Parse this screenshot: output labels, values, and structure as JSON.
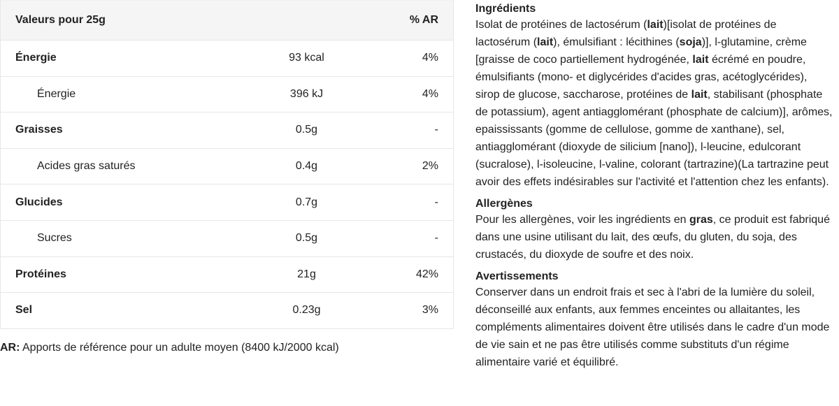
{
  "table": {
    "header": {
      "label": "Valeurs pour 25g",
      "value": "",
      "ar": "% AR"
    },
    "rows": [
      {
        "label": "Énergie",
        "value": "93 kcal",
        "ar": "4%",
        "level": "main"
      },
      {
        "label": "Énergie",
        "value": "396 kJ",
        "ar": "4%",
        "level": "sub"
      },
      {
        "label": "Graisses",
        "value": "0.5g",
        "ar": "-",
        "level": "main"
      },
      {
        "label": "Acides gras saturés",
        "value": "0.4g",
        "ar": "2%",
        "level": "sub"
      },
      {
        "label": "Glucides",
        "value": "0.7g",
        "ar": "-",
        "level": "main"
      },
      {
        "label": "Sucres",
        "value": "0.5g",
        "ar": "-",
        "level": "sub"
      },
      {
        "label": "Protéines",
        "value": "21g",
        "ar": "42%",
        "level": "main"
      },
      {
        "label": "Sel",
        "value": "0.23g",
        "ar": "3%",
        "level": "main"
      }
    ]
  },
  "footnote": {
    "abbr": "AR:",
    "text": " Apports de référence pour un adulte moyen (8400 kJ/2000 kcal)"
  },
  "sections": [
    {
      "title": "Ingrédients",
      "segments": [
        {
          "t": "Isolat de protéines de lactosérum ("
        },
        {
          "t": "lait",
          "b": true
        },
        {
          "t": ")[isolat de protéines de lactosérum ("
        },
        {
          "t": "lait",
          "b": true
        },
        {
          "t": "), émulsifiant : lécithines ("
        },
        {
          "t": "soja",
          "b": true
        },
        {
          "t": ")], l-glutamine, crème [graisse de coco partiellement hydrogénée, "
        },
        {
          "t": "lait",
          "b": true
        },
        {
          "t": " écrémé en poudre, émulsifiants (mono- et diglycérides d'acides gras, acétoglycérides), sirop de glucose, saccharose, protéines de "
        },
        {
          "t": "lait",
          "b": true
        },
        {
          "t": ", stabilisant (phosphate de potassium), agent antiagglomérant (phosphate de calcium)], arômes, epaississants (gomme de cellulose, gomme de xanthane), sel, antiagglomérant (dioxyde de silicium [nano]), l-leucine, edulcorant (sucralose), l-isoleucine, l-valine, colorant (tartrazine)(La tartrazine peut avoir des effets indésirables sur l'activité et l'attention chez les enfants)."
        }
      ]
    },
    {
      "title": "Allergènes",
      "segments": [
        {
          "t": "Pour les allergènes, voir les ingrédients en "
        },
        {
          "t": "gras",
          "b": true
        },
        {
          "t": ", ce produit est fabriqué dans une usine utilisant du lait, des œufs, du gluten, du soja, des crustacés, du dioxyde de soufre et des noix."
        }
      ]
    },
    {
      "title": "Avertissements",
      "segments": [
        {
          "t": "Conserver dans un endroit frais et sec à l'abri de la lumière du soleil, déconseillé aux enfants, aux femmes enceintes ou allaitantes, les compléments alimentaires doivent être utilisés dans le cadre d'un mode de vie sain et ne pas être utilisés comme substituts d'un régime alimentaire varié et équilibré."
        }
      ]
    }
  ]
}
